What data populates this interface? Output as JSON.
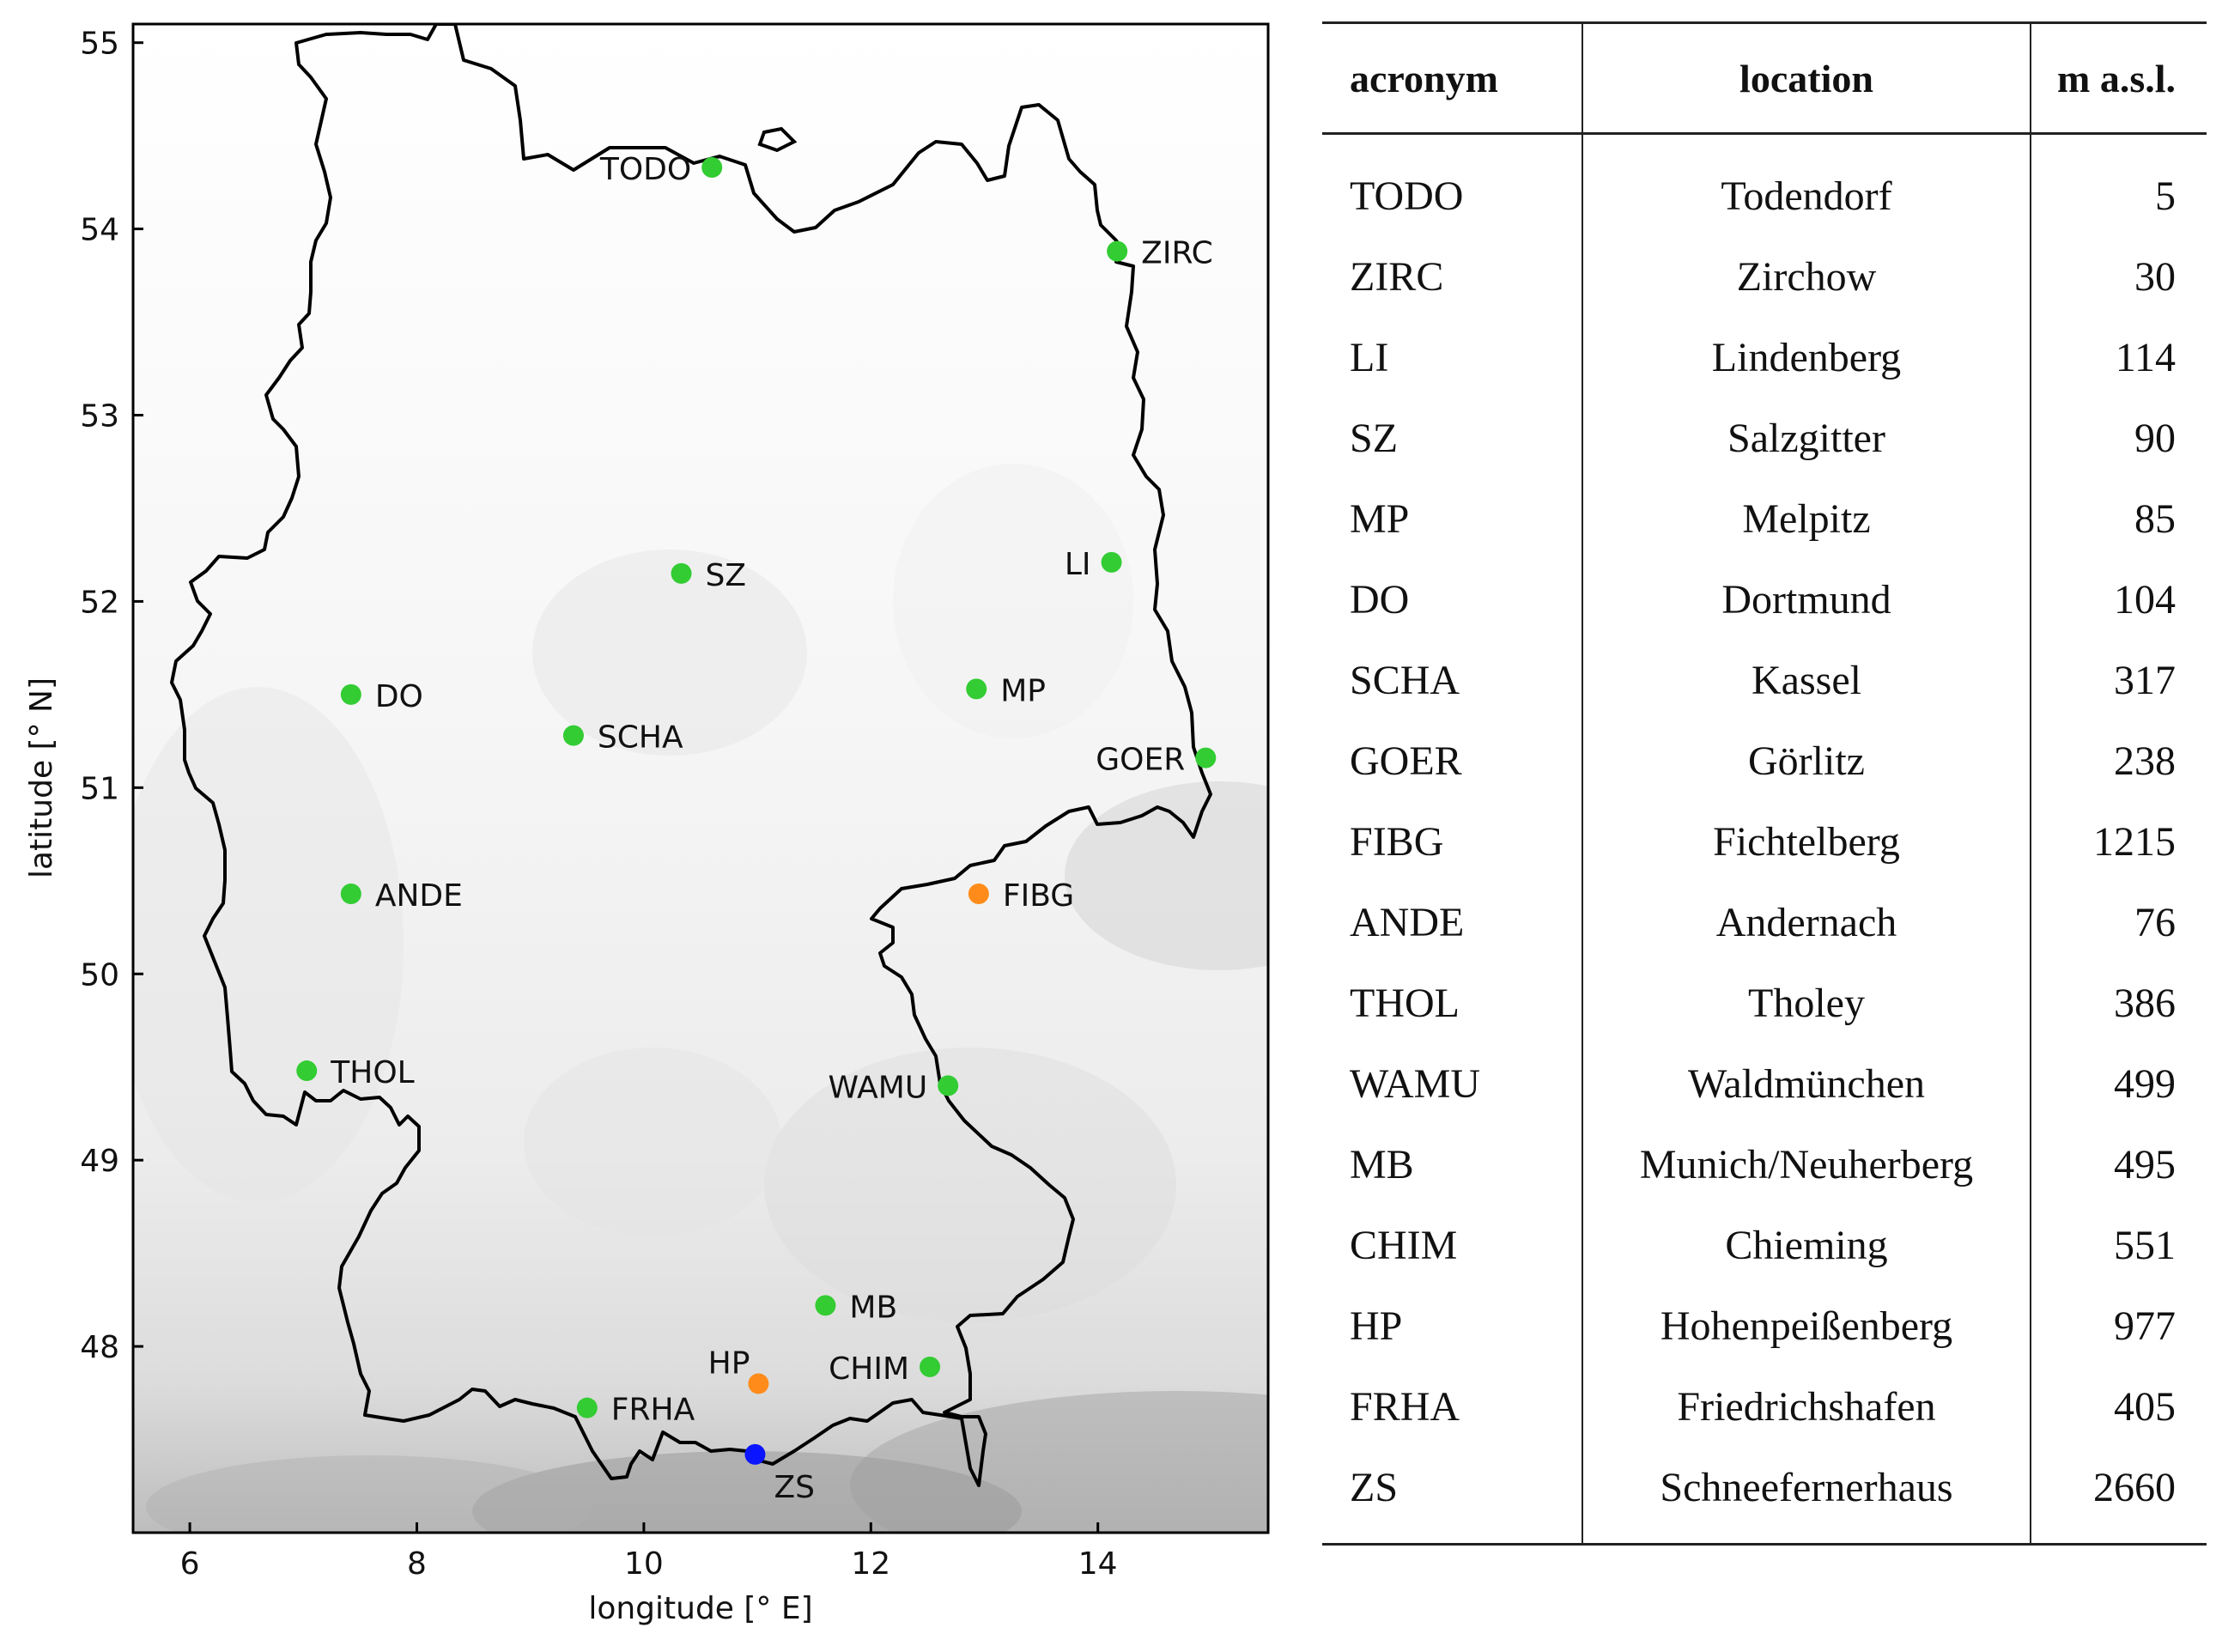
{
  "map": {
    "xlabel": "longitude [° E]",
    "ylabel": "latitude [° N]",
    "xlim": [
      5.5,
      15.5
    ],
    "ylim": [
      47.0,
      55.1
    ],
    "xticks": [
      6,
      8,
      10,
      12,
      14
    ],
    "yticks": [
      48,
      49,
      50,
      51,
      52,
      53,
      54,
      55
    ],
    "marker_colors": {
      "green": "#33cc33",
      "orange": "#ff8c1a",
      "blue": "#0a14ff"
    },
    "stations": [
      {
        "id": "TODO",
        "lon": 10.6,
        "lat": 54.33,
        "color": "green",
        "label_side": "left"
      },
      {
        "id": "ZIRC",
        "lon": 14.17,
        "lat": 53.88,
        "color": "green",
        "label_side": "right"
      },
      {
        "id": "LI",
        "lon": 14.12,
        "lat": 52.21,
        "color": "green",
        "label_side": "left"
      },
      {
        "id": "SZ",
        "lon": 10.33,
        "lat": 52.15,
        "color": "green",
        "label_side": "right"
      },
      {
        "id": "MP",
        "lon": 12.93,
        "lat": 51.53,
        "color": "green",
        "label_side": "right"
      },
      {
        "id": "DO",
        "lon": 7.42,
        "lat": 51.5,
        "color": "green",
        "label_side": "right"
      },
      {
        "id": "SCHA",
        "lon": 9.38,
        "lat": 51.28,
        "color": "green",
        "label_side": "right"
      },
      {
        "id": "GOER",
        "lon": 14.95,
        "lat": 51.16,
        "color": "green",
        "label_side": "left"
      },
      {
        "id": "FIBG",
        "lon": 12.95,
        "lat": 50.43,
        "color": "orange",
        "label_side": "right"
      },
      {
        "id": "ANDE",
        "lon": 7.42,
        "lat": 50.43,
        "color": "green",
        "label_side": "right"
      },
      {
        "id": "THOL",
        "lon": 7.03,
        "lat": 49.48,
        "color": "green",
        "label_side": "right"
      },
      {
        "id": "WAMU",
        "lon": 12.68,
        "lat": 49.4,
        "color": "green",
        "label_side": "left"
      },
      {
        "id": "MB",
        "lon": 11.6,
        "lat": 48.22,
        "color": "green",
        "label_side": "right"
      },
      {
        "id": "CHIM",
        "lon": 12.52,
        "lat": 47.89,
        "color": "green",
        "label_side": "left"
      },
      {
        "id": "HP",
        "lon": 11.01,
        "lat": 47.8,
        "color": "orange",
        "label_side": "upper-left"
      },
      {
        "id": "FRHA",
        "lon": 9.5,
        "lat": 47.67,
        "color": "green",
        "label_side": "right"
      },
      {
        "id": "ZS",
        "lon": 10.98,
        "lat": 47.42,
        "color": "blue",
        "label_side": "below-right"
      }
    ]
  },
  "table": {
    "headers": {
      "acronym": "acronym",
      "location": "location",
      "altitude": "m a.s.l."
    },
    "rows": [
      {
        "acronym": "TODO",
        "location": "Todendorf",
        "altitude": "5"
      },
      {
        "acronym": "ZIRC",
        "location": "Zirchow",
        "altitude": "30"
      },
      {
        "acronym": "LI",
        "location": "Lindenberg",
        "altitude": "114"
      },
      {
        "acronym": "SZ",
        "location": "Salzgitter",
        "altitude": "90"
      },
      {
        "acronym": "MP",
        "location": "Melpitz",
        "altitude": "85"
      },
      {
        "acronym": "DO",
        "location": "Dortmund",
        "altitude": "104"
      },
      {
        "acronym": "SCHA",
        "location": "Kassel",
        "altitude": "317"
      },
      {
        "acronym": "GOER",
        "location": "Görlitz",
        "altitude": "238"
      },
      {
        "acronym": "FIBG",
        "location": "Fichtelberg",
        "altitude": "1215"
      },
      {
        "acronym": "ANDE",
        "location": "Andernach",
        "altitude": "76"
      },
      {
        "acronym": "THOL",
        "location": "Tholey",
        "altitude": "386"
      },
      {
        "acronym": "WAMU",
        "location": "Waldmünchen",
        "altitude": "499"
      },
      {
        "acronym": "MB",
        "location": "Munich/Neuherberg",
        "altitude": "495"
      },
      {
        "acronym": "CHIM",
        "location": "Chieming",
        "altitude": "551"
      },
      {
        "acronym": "HP",
        "location": "Hohenpeißenberg",
        "altitude": "977"
      },
      {
        "acronym": "FRHA",
        "location": "Friedrichshafen",
        "altitude": "405"
      },
      {
        "acronym": "ZS",
        "location": "Schneefernerhaus",
        "altitude": "2660"
      }
    ]
  }
}
